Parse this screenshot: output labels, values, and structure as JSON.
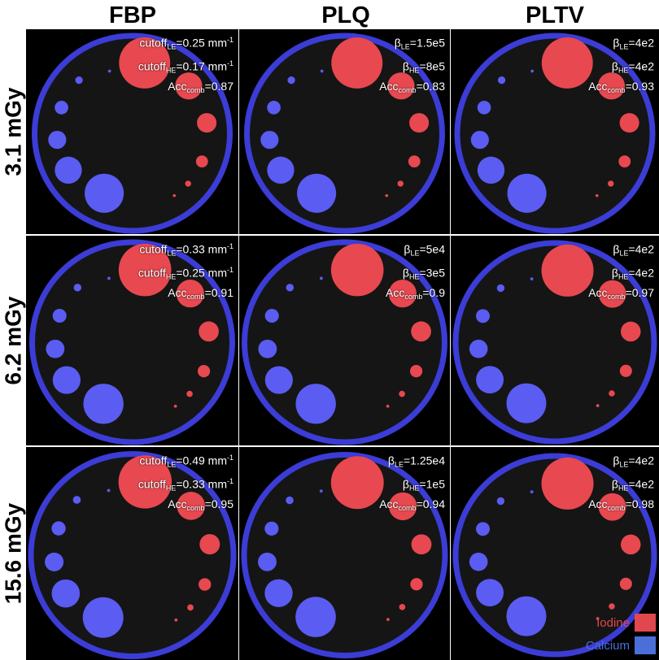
{
  "columns": [
    "FBP",
    "PLQ",
    "PLTV"
  ],
  "rows": [
    "3.1 mGy",
    "6.2 mGy",
    "15.6 mGy"
  ],
  "panels": [
    [
      {
        "l1a": "cutoff",
        "l1s": "LE",
        "l1b": "=0.25 mm",
        "l1c": "-1",
        "l2a": "cutoff",
        "l2s": "HE",
        "l2b": "=0.17 mm",
        "l2c": "-1",
        "l3a": "Acc",
        "l3s": "comb",
        "l3b": "=0.87"
      },
      {
        "l1a": "β",
        "l1s": "LE",
        "l1b": "=1.5e5",
        "l1c": "",
        "l2a": "β",
        "l2s": "HE",
        "l2b": "=8e5",
        "l2c": "",
        "l3a": "Acc",
        "l3s": "comb",
        "l3b": "=0.83"
      },
      {
        "l1a": "β",
        "l1s": "LE",
        "l1b": "=4e2",
        "l1c": "",
        "l2a": "β",
        "l2s": "HE",
        "l2b": "=4e2",
        "l2c": "",
        "l3a": "Acc",
        "l3s": "comb",
        "l3b": "=0.93"
      }
    ],
    [
      {
        "l1a": "cutoff",
        "l1s": "LE",
        "l1b": "=0.33 mm",
        "l1c": "-1",
        "l2a": "cutoff",
        "l2s": "HE",
        "l2b": "=0.25 mm",
        "l2c": "-1",
        "l3a": "Acc",
        "l3s": "comb",
        "l3b": "=0.91"
      },
      {
        "l1a": "β",
        "l1s": "LE",
        "l1b": "=5e4",
        "l1c": "",
        "l2a": "β",
        "l2s": "HE",
        "l2b": "=3e5",
        "l2c": "",
        "l3a": "Acc",
        "l3s": "comb",
        "l3b": "=0.9"
      },
      {
        "l1a": "β",
        "l1s": "LE",
        "l1b": "=4e2",
        "l1c": "",
        "l2a": "β",
        "l2s": "HE",
        "l2b": "=4e2",
        "l2c": "",
        "l3a": "Acc",
        "l3s": "comb",
        "l3b": "=0.97"
      }
    ],
    [
      {
        "l1a": "cutoff",
        "l1s": "LE",
        "l1b": "=0.49 mm",
        "l1c": "-1",
        "l2a": "cutoff",
        "l2s": "HE",
        "l2b": "=0.33 mm",
        "l2c": "-1",
        "l3a": "Acc",
        "l3s": "comb",
        "l3b": "=0.95"
      },
      {
        "l1a": "β",
        "l1s": "LE",
        "l1b": "=1.25e4",
        "l1c": "",
        "l2a": "β",
        "l2s": "HE",
        "l2b": "=1e5",
        "l2c": "",
        "l3a": "Acc",
        "l3s": "comb",
        "l3b": "=0.94"
      },
      {
        "l1a": "β",
        "l1s": "LE",
        "l1b": "=4e2",
        "l1c": "",
        "l2a": "β",
        "l2s": "HE",
        "l2b": "=4e2",
        "l2c": "",
        "l3a": "Acc",
        "l3s": "comb",
        "l3b": "=0.98"
      }
    ]
  ],
  "legend": [
    {
      "label": "Iodine",
      "color": "#e0484e"
    },
    {
      "label": "Calcium",
      "color": "#4a6fd8"
    }
  ],
  "colors": {
    "iodine": "#e8484f",
    "calcium": "#5a5cf2",
    "ring": "#3c3cd6",
    "background": "#151515"
  }
}
